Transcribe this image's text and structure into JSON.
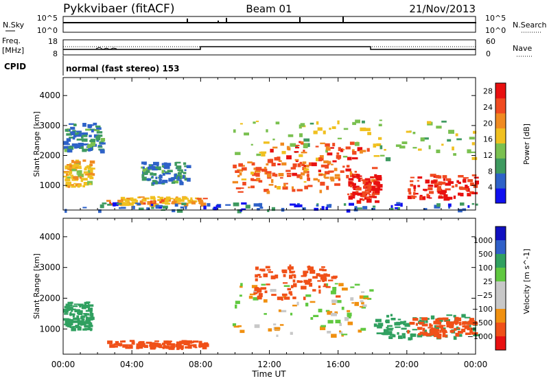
{
  "header": {
    "title": "Pykkvibaer (fitACF)",
    "beam": "Beam 01",
    "date": "21/Nov/2013"
  },
  "noise_panel": {
    "left_label": "N.Sky",
    "right_label": "N.Search",
    "tick_top": "10^5",
    "tick_bottom": "10^0"
  },
  "freq_panel": {
    "left_label_line1": "Freq.",
    "left_label_line2": "[MHz]",
    "right_label": "Nave",
    "left_ticks": [
      "18",
      "8"
    ],
    "right_ticks": [
      "60",
      "0"
    ]
  },
  "cpid": {
    "label": "CPID",
    "value": "normal (fast stereo) 153"
  },
  "colors": {
    "power": [
      "#1010f0",
      "#2e62c8",
      "#3e9a60",
      "#7ac050",
      "#f0c020",
      "#f08a20",
      "#f04a20",
      "#e81010"
    ],
    "velocity": [
      "#e81010",
      "#f05018",
      "#f09010",
      "#c8c8c8",
      "#c8c8c8",
      "#60c840",
      "#30a060",
      "#3060c8",
      "#1010c0"
    ]
  },
  "chart_data": [
    {
      "type": "heatmap",
      "name": "power",
      "xlabel": "Time UT",
      "ylabel": "Slant Range [km]",
      "xlim": [
        0,
        24
      ],
      "ylim": [
        180,
        4600
      ],
      "x_ticks": [
        "00:00",
        "04:00",
        "08:00",
        "12:00",
        "16:00",
        "20:00",
        "00:00"
      ],
      "y_ticks": [
        1000,
        2000,
        3000,
        4000
      ],
      "colorbar": {
        "label": "Power [dB]",
        "ticks": [
          4,
          8,
          12,
          16,
          20,
          24,
          28
        ],
        "range": [
          0,
          30
        ]
      },
      "regions": [
        {
          "t": [
            0.0,
            1.6
          ],
          "r": [
            1000,
            1900
          ],
          "v": 18
        },
        {
          "t": [
            0.0,
            2.2
          ],
          "r": [
            2200,
            3100
          ],
          "v": 8
        },
        {
          "t": [
            2.5,
            8.2
          ],
          "r": [
            400,
            650
          ],
          "v": 20
        },
        {
          "t": [
            4.5,
            7.2
          ],
          "r": [
            1100,
            1800
          ],
          "v": 8
        },
        {
          "t": [
            9.7,
            24.0
          ],
          "r": [
            1900,
            3200
          ],
          "v": 14
        },
        {
          "t": [
            9.8,
            16.0
          ],
          "r": [
            800,
            1900
          ],
          "v": 22
        },
        {
          "t": [
            12.0,
            18.0
          ],
          "r": [
            1200,
            2500
          ],
          "v": 24
        },
        {
          "t": [
            16.5,
            18.3
          ],
          "r": [
            500,
            1400
          ],
          "v": 27
        },
        {
          "t": [
            20.0,
            24.0
          ],
          "r": [
            600,
            1400
          ],
          "v": 27
        },
        {
          "t": [
            0.0,
            24.0
          ],
          "r": [
            200,
            450
          ],
          "v": 6
        }
      ]
    },
    {
      "type": "heatmap",
      "name": "velocity",
      "xlabel": "Time UT",
      "ylabel": "Slant Range [km]",
      "xlim": [
        0,
        24
      ],
      "ylim": [
        180,
        4600
      ],
      "x_ticks": [
        "00:00",
        "04:00",
        "08:00",
        "12:00",
        "16:00",
        "20:00",
        "00:00"
      ],
      "y_ticks": [
        1000,
        2000,
        3000,
        4000
      ],
      "colorbar": {
        "label": "Velocity [m s^-1]",
        "ticks": [
          "1000",
          "500",
          "100",
          "25",
          "−25",
          "−100",
          "−500",
          "−1000"
        ]
      },
      "regions": [
        {
          "t": [
            0.0,
            1.6
          ],
          "r": [
            1000,
            1900
          ],
          "v": 300
        },
        {
          "t": [
            2.5,
            8.2
          ],
          "r": [
            400,
            650
          ],
          "v": -200
        },
        {
          "t": [
            9.7,
            18.0
          ],
          "r": [
            800,
            2500
          ],
          "v": 0
        },
        {
          "t": [
            11.0,
            16.0
          ],
          "r": [
            2000,
            3100
          ],
          "v": -300
        },
        {
          "t": [
            18.0,
            24.0
          ],
          "r": [
            700,
            1500
          ],
          "v": 200
        },
        {
          "t": [
            20.0,
            24.0
          ],
          "r": [
            800,
            1400
          ],
          "v": -400
        }
      ]
    }
  ]
}
